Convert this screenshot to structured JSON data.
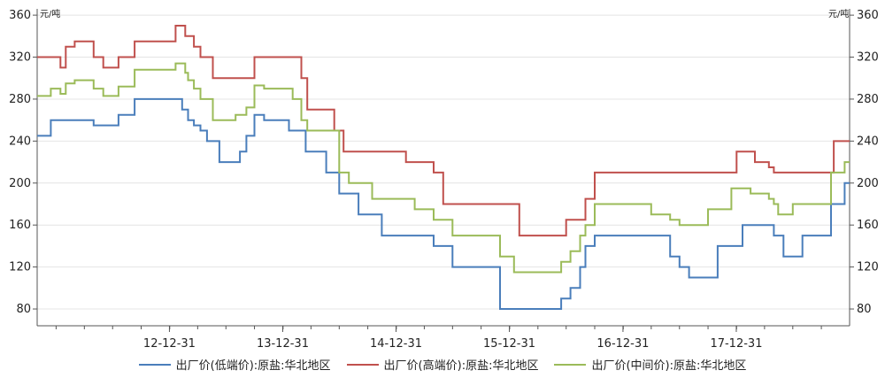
{
  "chart_data": {
    "type": "line",
    "y_unit_left": "元/吨",
    "y_unit_right": "元/吨",
    "ylim": [
      64,
      366
    ],
    "y_ticks": [
      80,
      120,
      160,
      200,
      240,
      280,
      320,
      360
    ],
    "xlim": [
      "2011-11-01",
      "2018-12-31"
    ],
    "x_ticks": [
      {
        "date": "2012-12-31",
        "label": "12-12-31"
      },
      {
        "date": "2013-12-31",
        "label": "13-12-31"
      },
      {
        "date": "2014-12-31",
        "label": "14-12-31"
      },
      {
        "date": "2015-12-31",
        "label": "15-12-31"
      },
      {
        "date": "2016-12-31",
        "label": "16-12-31"
      },
      {
        "date": "2017-12-31",
        "label": "17-12-31"
      }
    ],
    "grid": true,
    "legend_position": "bottom",
    "series": [
      {
        "name": "出厂价(低端价):原盐:华北地区",
        "color": "#4a7ebb",
        "points": [
          [
            "2011-11-01",
            245
          ],
          [
            "2011-12-15",
            260
          ],
          [
            "2012-05-01",
            255
          ],
          [
            "2012-07-20",
            265
          ],
          [
            "2012-09-10",
            280
          ],
          [
            "2013-02-10",
            270
          ],
          [
            "2013-03-01",
            260
          ],
          [
            "2013-03-20",
            255
          ],
          [
            "2013-04-10",
            250
          ],
          [
            "2013-05-01",
            240
          ],
          [
            "2013-06-10",
            220
          ],
          [
            "2013-08-15",
            230
          ],
          [
            "2013-09-05",
            245
          ],
          [
            "2013-10-01",
            265
          ],
          [
            "2013-11-01",
            260
          ],
          [
            "2014-01-20",
            250
          ],
          [
            "2014-03-15",
            230
          ],
          [
            "2014-05-20",
            210
          ],
          [
            "2014-07-01",
            190
          ],
          [
            "2014-09-01",
            170
          ],
          [
            "2014-11-15",
            150
          ],
          [
            "2015-05-01",
            140
          ],
          [
            "2015-07-01",
            120
          ],
          [
            "2015-12-01",
            80
          ],
          [
            "2016-06-15",
            90
          ],
          [
            "2016-07-15",
            100
          ],
          [
            "2016-08-15",
            120
          ],
          [
            "2016-09-01",
            140
          ],
          [
            "2016-10-01",
            150
          ],
          [
            "2017-06-01",
            130
          ],
          [
            "2017-07-01",
            120
          ],
          [
            "2017-08-01",
            110
          ],
          [
            "2017-11-01",
            140
          ],
          [
            "2018-01-20",
            160
          ],
          [
            "2018-05-01",
            150
          ],
          [
            "2018-06-01",
            130
          ],
          [
            "2018-08-01",
            150
          ],
          [
            "2018-11-01",
            180
          ],
          [
            "2018-12-15",
            200
          ]
        ]
      },
      {
        "name": "出厂价(高端价):原盐:华北地区",
        "color": "#c0504d",
        "points": [
          [
            "2011-11-01",
            320
          ],
          [
            "2012-01-15",
            310
          ],
          [
            "2012-02-01",
            330
          ],
          [
            "2012-03-01",
            335
          ],
          [
            "2012-05-01",
            320
          ],
          [
            "2012-06-01",
            310
          ],
          [
            "2012-07-20",
            320
          ],
          [
            "2012-09-10",
            335
          ],
          [
            "2013-01-20",
            350
          ],
          [
            "2013-02-20",
            340
          ],
          [
            "2013-03-20",
            330
          ],
          [
            "2013-04-10",
            320
          ],
          [
            "2013-05-20",
            300
          ],
          [
            "2013-10-01",
            320
          ],
          [
            "2014-03-01",
            300
          ],
          [
            "2014-03-20",
            270
          ],
          [
            "2014-06-15",
            250
          ],
          [
            "2014-07-15",
            230
          ],
          [
            "2015-02-01",
            220
          ],
          [
            "2015-05-01",
            210
          ],
          [
            "2015-06-01",
            180
          ],
          [
            "2016-02-01",
            150
          ],
          [
            "2016-07-01",
            165
          ],
          [
            "2016-09-01",
            185
          ],
          [
            "2016-10-01",
            210
          ],
          [
            "2018-01-01",
            230
          ],
          [
            "2018-03-01",
            220
          ],
          [
            "2018-04-15",
            215
          ],
          [
            "2018-05-01",
            210
          ],
          [
            "2018-11-10",
            240
          ]
        ]
      },
      {
        "name": "出厂价(中间价):原盐:华北地区",
        "color": "#9bbb59",
        "points": [
          [
            "2011-11-01",
            283
          ],
          [
            "2011-12-15",
            290
          ],
          [
            "2012-01-15",
            285
          ],
          [
            "2012-02-01",
            295
          ],
          [
            "2012-03-01",
            298
          ],
          [
            "2012-05-01",
            290
          ],
          [
            "2012-06-01",
            283
          ],
          [
            "2012-07-20",
            292
          ],
          [
            "2012-09-10",
            308
          ],
          [
            "2013-01-20",
            314
          ],
          [
            "2013-02-20",
            305
          ],
          [
            "2013-03-01",
            298
          ],
          [
            "2013-03-20",
            290
          ],
          [
            "2013-04-10",
            280
          ],
          [
            "2013-05-20",
            260
          ],
          [
            "2013-08-01",
            265
          ],
          [
            "2013-09-05",
            272
          ],
          [
            "2013-10-01",
            293
          ],
          [
            "2013-11-01",
            290
          ],
          [
            "2014-02-01",
            280
          ],
          [
            "2014-03-01",
            260
          ],
          [
            "2014-03-20",
            250
          ],
          [
            "2014-07-01",
            210
          ],
          [
            "2014-08-01",
            200
          ],
          [
            "2014-10-15",
            185
          ],
          [
            "2015-03-01",
            175
          ],
          [
            "2015-05-01",
            165
          ],
          [
            "2015-07-01",
            150
          ],
          [
            "2015-12-01",
            130
          ],
          [
            "2016-01-15",
            115
          ],
          [
            "2016-06-15",
            125
          ],
          [
            "2016-07-15",
            135
          ],
          [
            "2016-08-15",
            150
          ],
          [
            "2016-09-01",
            160
          ],
          [
            "2016-10-01",
            180
          ],
          [
            "2017-04-01",
            170
          ],
          [
            "2017-06-01",
            165
          ],
          [
            "2017-07-01",
            160
          ],
          [
            "2017-10-01",
            175
          ],
          [
            "2017-12-15",
            195
          ],
          [
            "2018-02-15",
            190
          ],
          [
            "2018-04-15",
            185
          ],
          [
            "2018-05-01",
            180
          ],
          [
            "2018-05-15",
            170
          ],
          [
            "2018-07-01",
            180
          ],
          [
            "2018-11-01",
            210
          ],
          [
            "2018-12-15",
            220
          ]
        ]
      }
    ]
  }
}
